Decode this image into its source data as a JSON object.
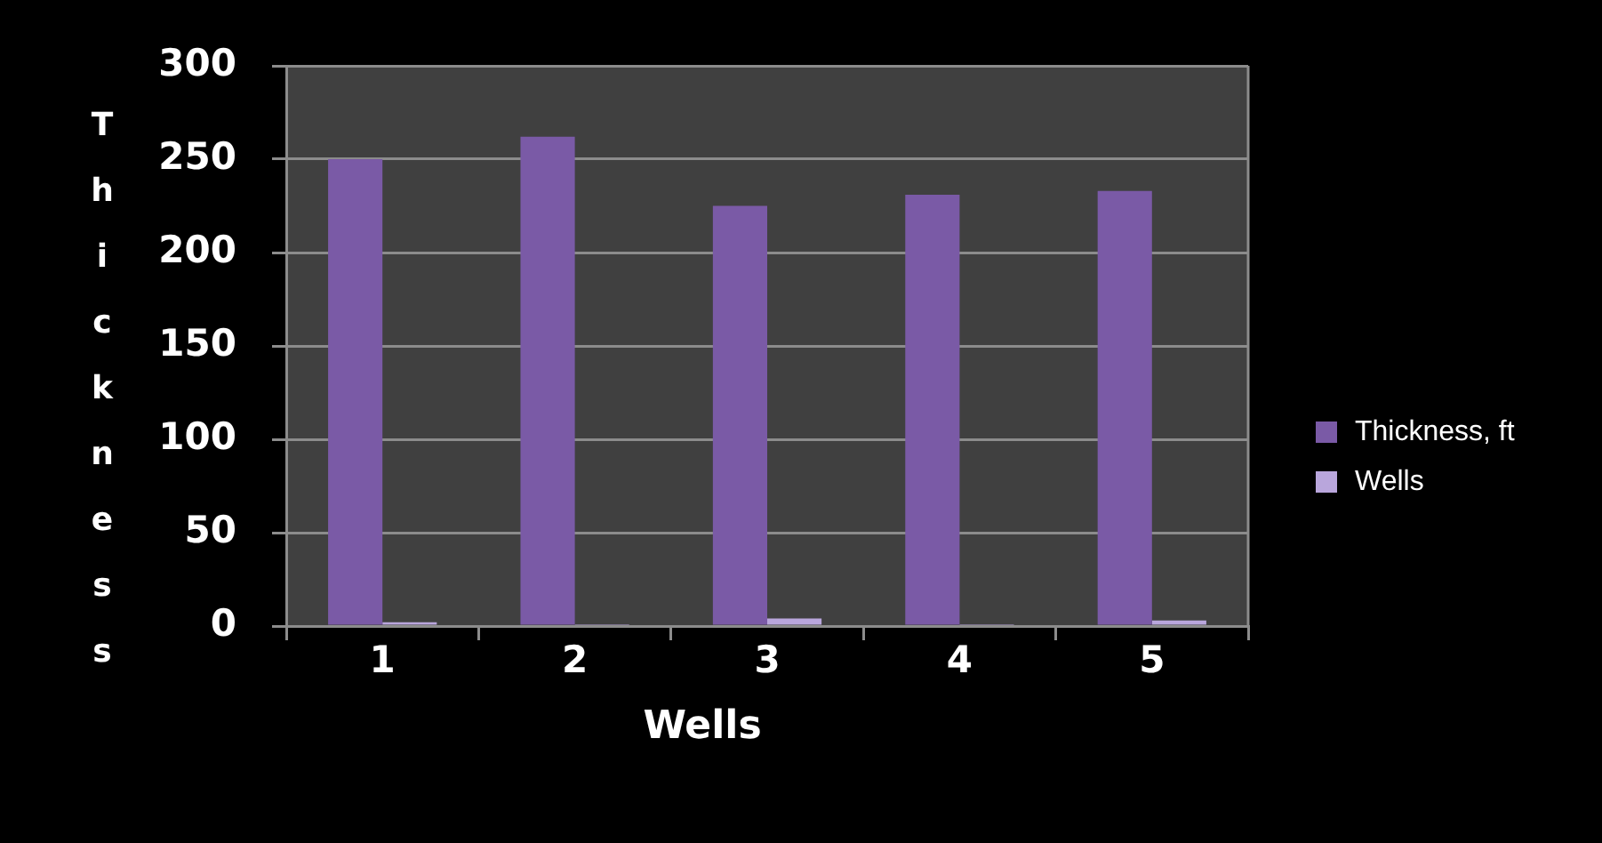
{
  "chart_data": {
    "type": "bar",
    "categories": [
      "1",
      "2",
      "3",
      "4",
      "5"
    ],
    "series": [
      {
        "name": "Thickness, ft",
        "color": "#7a5aa6",
        "values": [
          250,
          262,
          225,
          231,
          233
        ]
      },
      {
        "name": "Wells",
        "color": "#b9a6dc",
        "values": [
          2,
          1,
          4,
          1,
          3
        ]
      }
    ],
    "xlabel": "Wells",
    "ylabel": "Thickness",
    "ylim": [
      0,
      300
    ],
    "yticks": [
      0,
      50,
      100,
      150,
      200,
      250,
      300
    ],
    "grid": "y",
    "legend": "right"
  }
}
